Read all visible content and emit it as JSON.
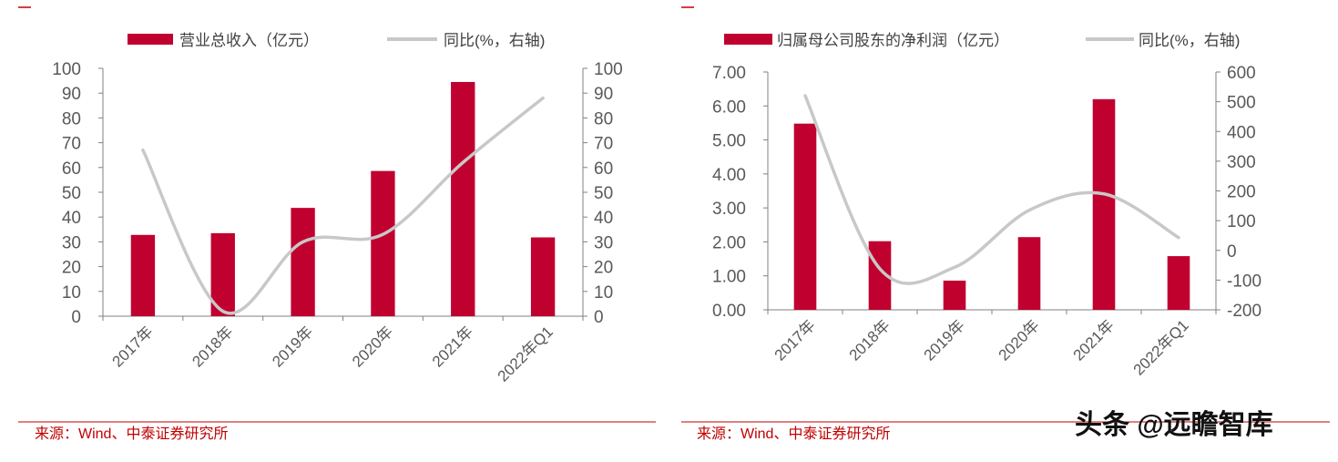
{
  "colors": {
    "bar": "#c0002f",
    "line": "#c8c8c8",
    "axis": "#808080",
    "rule": "#c00000"
  },
  "chart_data": [
    {
      "type": "bar+line",
      "categories": [
        "2017年",
        "2018年",
        "2019年",
        "2020年",
        "2021年",
        "2022年Q1"
      ],
      "series": [
        {
          "name": "营业总收入（亿元）",
          "type": "bar",
          "axis": "left",
          "values": [
            32.8,
            33.5,
            43.7,
            58.6,
            94.5,
            31.8
          ]
        },
        {
          "name": "同比(%，右轴)",
          "type": "line",
          "smooth": true,
          "axis": "right",
          "values": [
            67,
            2,
            30,
            33,
            62,
            88
          ]
        }
      ],
      "y_left": {
        "lim": [
          0,
          100
        ],
        "ticks": [
          "0",
          "10",
          "20",
          "30",
          "40",
          "50",
          "60",
          "70",
          "80",
          "90",
          "100"
        ]
      },
      "y_right": {
        "lim": [
          0,
          100
        ],
        "ticks": [
          "0",
          "10",
          "20",
          "30",
          "40",
          "50",
          "60",
          "70",
          "80",
          "90",
          "100"
        ]
      },
      "legend": "top",
      "grid": false,
      "source": "来源：Wind、中泰证券研究所"
    },
    {
      "type": "bar+line",
      "categories": [
        "2017年",
        "2018年",
        "2019年",
        "2020年",
        "2021年",
        "2022年Q1"
      ],
      "series": [
        {
          "name": "归属母公司股东的净利润（亿元）",
          "type": "bar",
          "axis": "left",
          "values": [
            5.48,
            2.02,
            0.86,
            2.14,
            6.2,
            1.58
          ]
        },
        {
          "name": "同比(%，右轴)",
          "type": "line",
          "smooth": true,
          "axis": "right",
          "values": [
            520,
            -62,
            -57,
            135,
            190,
            43
          ]
        }
      ],
      "y_left": {
        "lim": [
          0,
          7
        ],
        "ticks": [
          "0.00",
          "1.00",
          "2.00",
          "3.00",
          "4.00",
          "5.00",
          "6.00",
          "7.00"
        ]
      },
      "y_right": {
        "lim": [
          -200,
          600
        ],
        "ticks": [
          "-200",
          "-100",
          "0",
          "100",
          "200",
          "300",
          "400",
          "500",
          "600"
        ]
      },
      "legend": "top",
      "grid": false,
      "source": "来源：Wind、中泰证券研究所"
    }
  ],
  "watermark": "头条 @远瞻智库"
}
